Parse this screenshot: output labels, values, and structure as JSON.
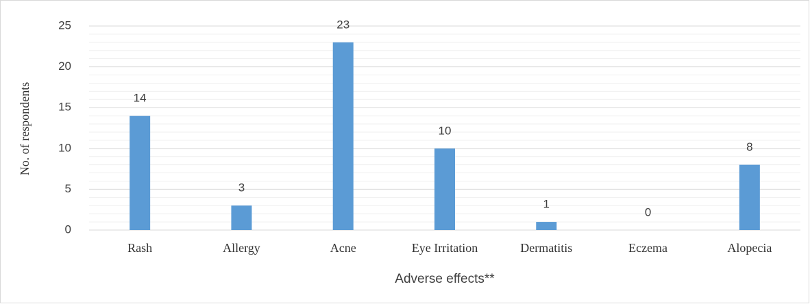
{
  "chart_data": {
    "type": "bar",
    "categories": [
      "Rash",
      "Allergy",
      "Acne",
      "Eye Irritation",
      "Dermatitis",
      "Eczema",
      "Alopecia"
    ],
    "values": [
      14,
      3,
      23,
      10,
      1,
      0,
      8
    ],
    "color": "#5b9bd5",
    "xlabel": "Adverse effects**",
    "ylabel": "No. of respondents",
    "ylim": [
      0,
      25
    ],
    "yticks": [
      0,
      5,
      10,
      15,
      20,
      25
    ],
    "grid": true,
    "minor_grid": true
  }
}
